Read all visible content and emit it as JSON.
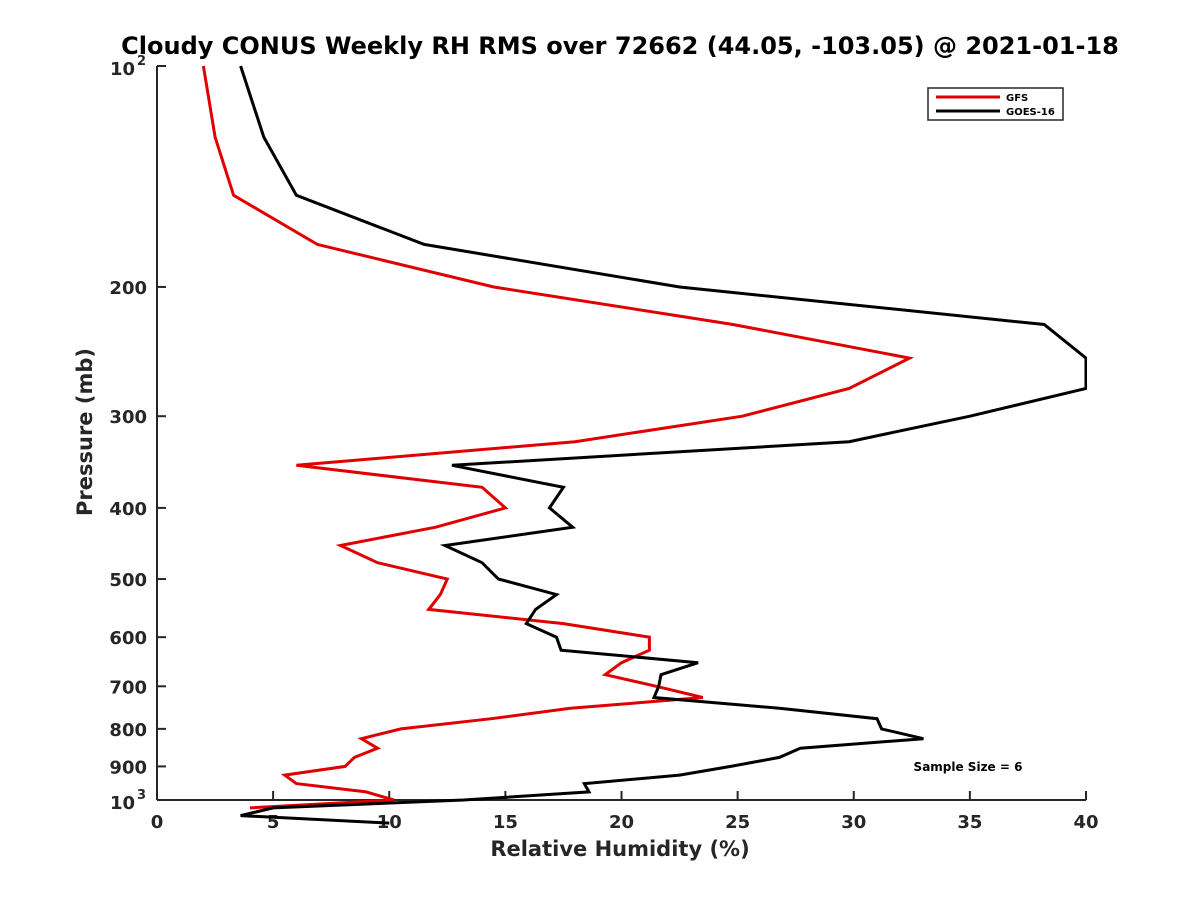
{
  "chart_data": {
    "type": "line",
    "title": "Cloudy CONUS Weekly RH RMS over 72662 (44.05, -103.05) @ 2021-01-18",
    "xlabel": "Relative Humidity (%)",
    "ylabel": "Pressure (mb)",
    "xlim": [
      0,
      40
    ],
    "ylim": [
      100,
      1000
    ],
    "y_scale": "log",
    "y_reversed": true,
    "x_ticks": [
      "0",
      "5",
      "10",
      "15",
      "20",
      "25",
      "30",
      "35",
      "40"
    ],
    "y_ticks": [
      {
        "value": 100,
        "base": "10",
        "exp": "2"
      },
      {
        "value": 200,
        "label": "200"
      },
      {
        "value": 300,
        "label": "300"
      },
      {
        "value": 400,
        "label": "400"
      },
      {
        "value": 500,
        "label": "500"
      },
      {
        "value": 600,
        "label": "600"
      },
      {
        "value": 700,
        "label": "700"
      },
      {
        "value": 800,
        "label": "800"
      },
      {
        "value": 900,
        "label": "900"
      },
      {
        "value": 1000,
        "base": "10",
        "exp": "3"
      }
    ],
    "legend_position": "top-right",
    "annotation": "Sample Size = 6",
    "series": [
      {
        "name": "GFS",
        "color": "#e00000",
        "points": [
          [
            2.0,
            100
          ],
          [
            2.5,
            125
          ],
          [
            3.3,
            150
          ],
          [
            6.9,
            175
          ],
          [
            14.5,
            200
          ],
          [
            24.8,
            225
          ],
          [
            32.4,
            250
          ],
          [
            29.8,
            275
          ],
          [
            25.2,
            300
          ],
          [
            18.0,
            325
          ],
          [
            6.0,
            350
          ],
          [
            14.0,
            375
          ],
          [
            15.0,
            400
          ],
          [
            12.0,
            425
          ],
          [
            7.9,
            450
          ],
          [
            9.5,
            475
          ],
          [
            12.5,
            500
          ],
          [
            12.2,
            525
          ],
          [
            11.7,
            550
          ],
          [
            17.5,
            575
          ],
          [
            21.2,
            600
          ],
          [
            21.2,
            625
          ],
          [
            20.0,
            650
          ],
          [
            19.3,
            675
          ],
          [
            21.5,
            700
          ],
          [
            23.5,
            725
          ],
          [
            17.8,
            750
          ],
          [
            14.4,
            775
          ],
          [
            10.5,
            800
          ],
          [
            8.8,
            825
          ],
          [
            9.5,
            850
          ],
          [
            8.5,
            875
          ],
          [
            8.1,
            900
          ],
          [
            5.5,
            925
          ],
          [
            6.0,
            950
          ],
          [
            9.0,
            975
          ],
          [
            10.2,
            1000
          ],
          [
            4.0,
            1025
          ]
        ]
      },
      {
        "name": "GOES-16",
        "color": "#000000",
        "points": [
          [
            3.6,
            100
          ],
          [
            4.6,
            125
          ],
          [
            6.0,
            150
          ],
          [
            11.5,
            175
          ],
          [
            22.5,
            200
          ],
          [
            38.2,
            225
          ],
          [
            40.0,
            250
          ],
          [
            40.0,
            275
          ],
          [
            35.0,
            300
          ],
          [
            29.8,
            325
          ],
          [
            12.7,
            350
          ],
          [
            17.5,
            375
          ],
          [
            16.9,
            400
          ],
          [
            17.9,
            425
          ],
          [
            12.4,
            450
          ],
          [
            14.0,
            475
          ],
          [
            14.7,
            500
          ],
          [
            17.2,
            525
          ],
          [
            16.3,
            550
          ],
          [
            15.9,
            575
          ],
          [
            17.2,
            600
          ],
          [
            17.4,
            625
          ],
          [
            23.3,
            650
          ],
          [
            21.7,
            675
          ],
          [
            21.6,
            700
          ],
          [
            21.4,
            725
          ],
          [
            26.8,
            750
          ],
          [
            31.0,
            775
          ],
          [
            31.2,
            800
          ],
          [
            33.0,
            825
          ],
          [
            27.7,
            850
          ],
          [
            26.8,
            875
          ],
          [
            24.7,
            900
          ],
          [
            22.5,
            925
          ],
          [
            18.4,
            950
          ],
          [
            18.6,
            975
          ],
          [
            13.2,
            1000
          ],
          [
            5.0,
            1025
          ],
          [
            3.6,
            1050
          ],
          [
            10.0,
            1075
          ]
        ]
      }
    ]
  }
}
